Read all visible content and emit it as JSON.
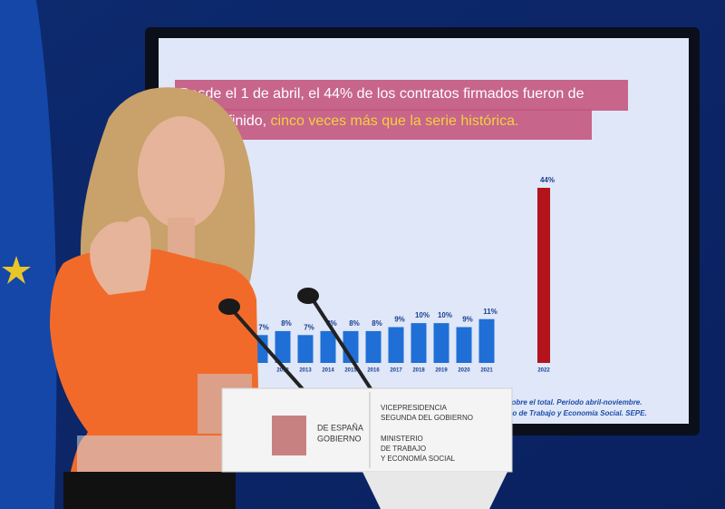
{
  "screen": {
    "headline_line1": "Desde el 1 de abril, el 44% de los contratos firmados fueron de",
    "headline_line2": "ter indefinido,",
    "headline_highlight": "cinco veces más que la serie histórica.",
    "footnote_line1": "sobre el total. Periodo abril-noviembre.",
    "footnote_line2": "rio de Trabajo y Economía Social. SEPE."
  },
  "chart_data": {
    "type": "bar",
    "categories": [
      null,
      "2012",
      "2013",
      "2014",
      "2015",
      "2016",
      "2017",
      "2018",
      "2019",
      "2020",
      "2021",
      "2022"
    ],
    "values": [
      7,
      8,
      7,
      8,
      8,
      8,
      9,
      10,
      10,
      9,
      11,
      44
    ],
    "value_labels": [
      "7%",
      "8%",
      "7%",
      "8%",
      "8%",
      "8%",
      "9%",
      "10%",
      "10%",
      "9%",
      "11%",
      "44%"
    ],
    "colors": [
      "#1f6fd6",
      "#1f6fd6",
      "#1f6fd6",
      "#1f6fd6",
      "#1f6fd6",
      "#1f6fd6",
      "#1f6fd6",
      "#1f6fd6",
      "#1f6fd6",
      "#1f6fd6",
      "#1f6fd6",
      "#b3141c"
    ],
    "ylim": [
      0,
      44
    ]
  },
  "podium": {
    "left_line1": "DE ESPAÑA",
    "left_line2": "GOBIERNO",
    "right_line1": "VICEPRESIDENCIA",
    "right_line2": "SEGUNDA DEL GOBIERNO",
    "right_line3": "MINISTERIO",
    "right_line4": "DE TRABAJO",
    "right_line5": "Y ECONOMÍA SOCIAL"
  }
}
